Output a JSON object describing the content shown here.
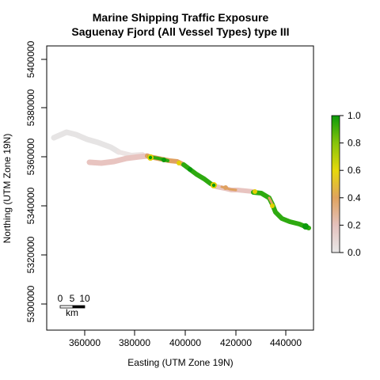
{
  "title_line1": "Marine Shipping Traffic Exposure",
  "title_line2": "Saguenay Fjord (All Vessel Types) type III",
  "xlabel": "Easting (UTM Zone 19N)",
  "ylabel": "Northing (UTM Zone 19N)",
  "x_ticks": [
    "360000",
    "380000",
    "400000",
    "420000",
    "440000"
  ],
  "y_ticks": [
    "5300000",
    "5320000",
    "5340000",
    "5360000",
    "5380000",
    "5400000"
  ],
  "legend": {
    "ticks": [
      "0.0",
      "0.2",
      "0.4",
      "0.6",
      "0.8",
      "1.0"
    ],
    "colors": [
      "#e8e8e8",
      "#e4c1bd",
      "#dfa35f",
      "#e6d80b",
      "#87c40b",
      "#0b9a0b"
    ]
  },
  "scalebar": {
    "ticks": [
      "0",
      "5",
      "10"
    ],
    "unit": "km"
  },
  "map": {
    "easting_range": [
      345000,
      450000
    ],
    "northing_range": [
      5293000,
      5405000
    ],
    "colors": {
      "faint_upstream": "#e6e4e4",
      "low": "#e8c4c0",
      "mid_low": "#dfa060",
      "mid": "#e3d000",
      "high": "#2eaa10",
      "full": "#0b9a0b"
    }
  }
}
